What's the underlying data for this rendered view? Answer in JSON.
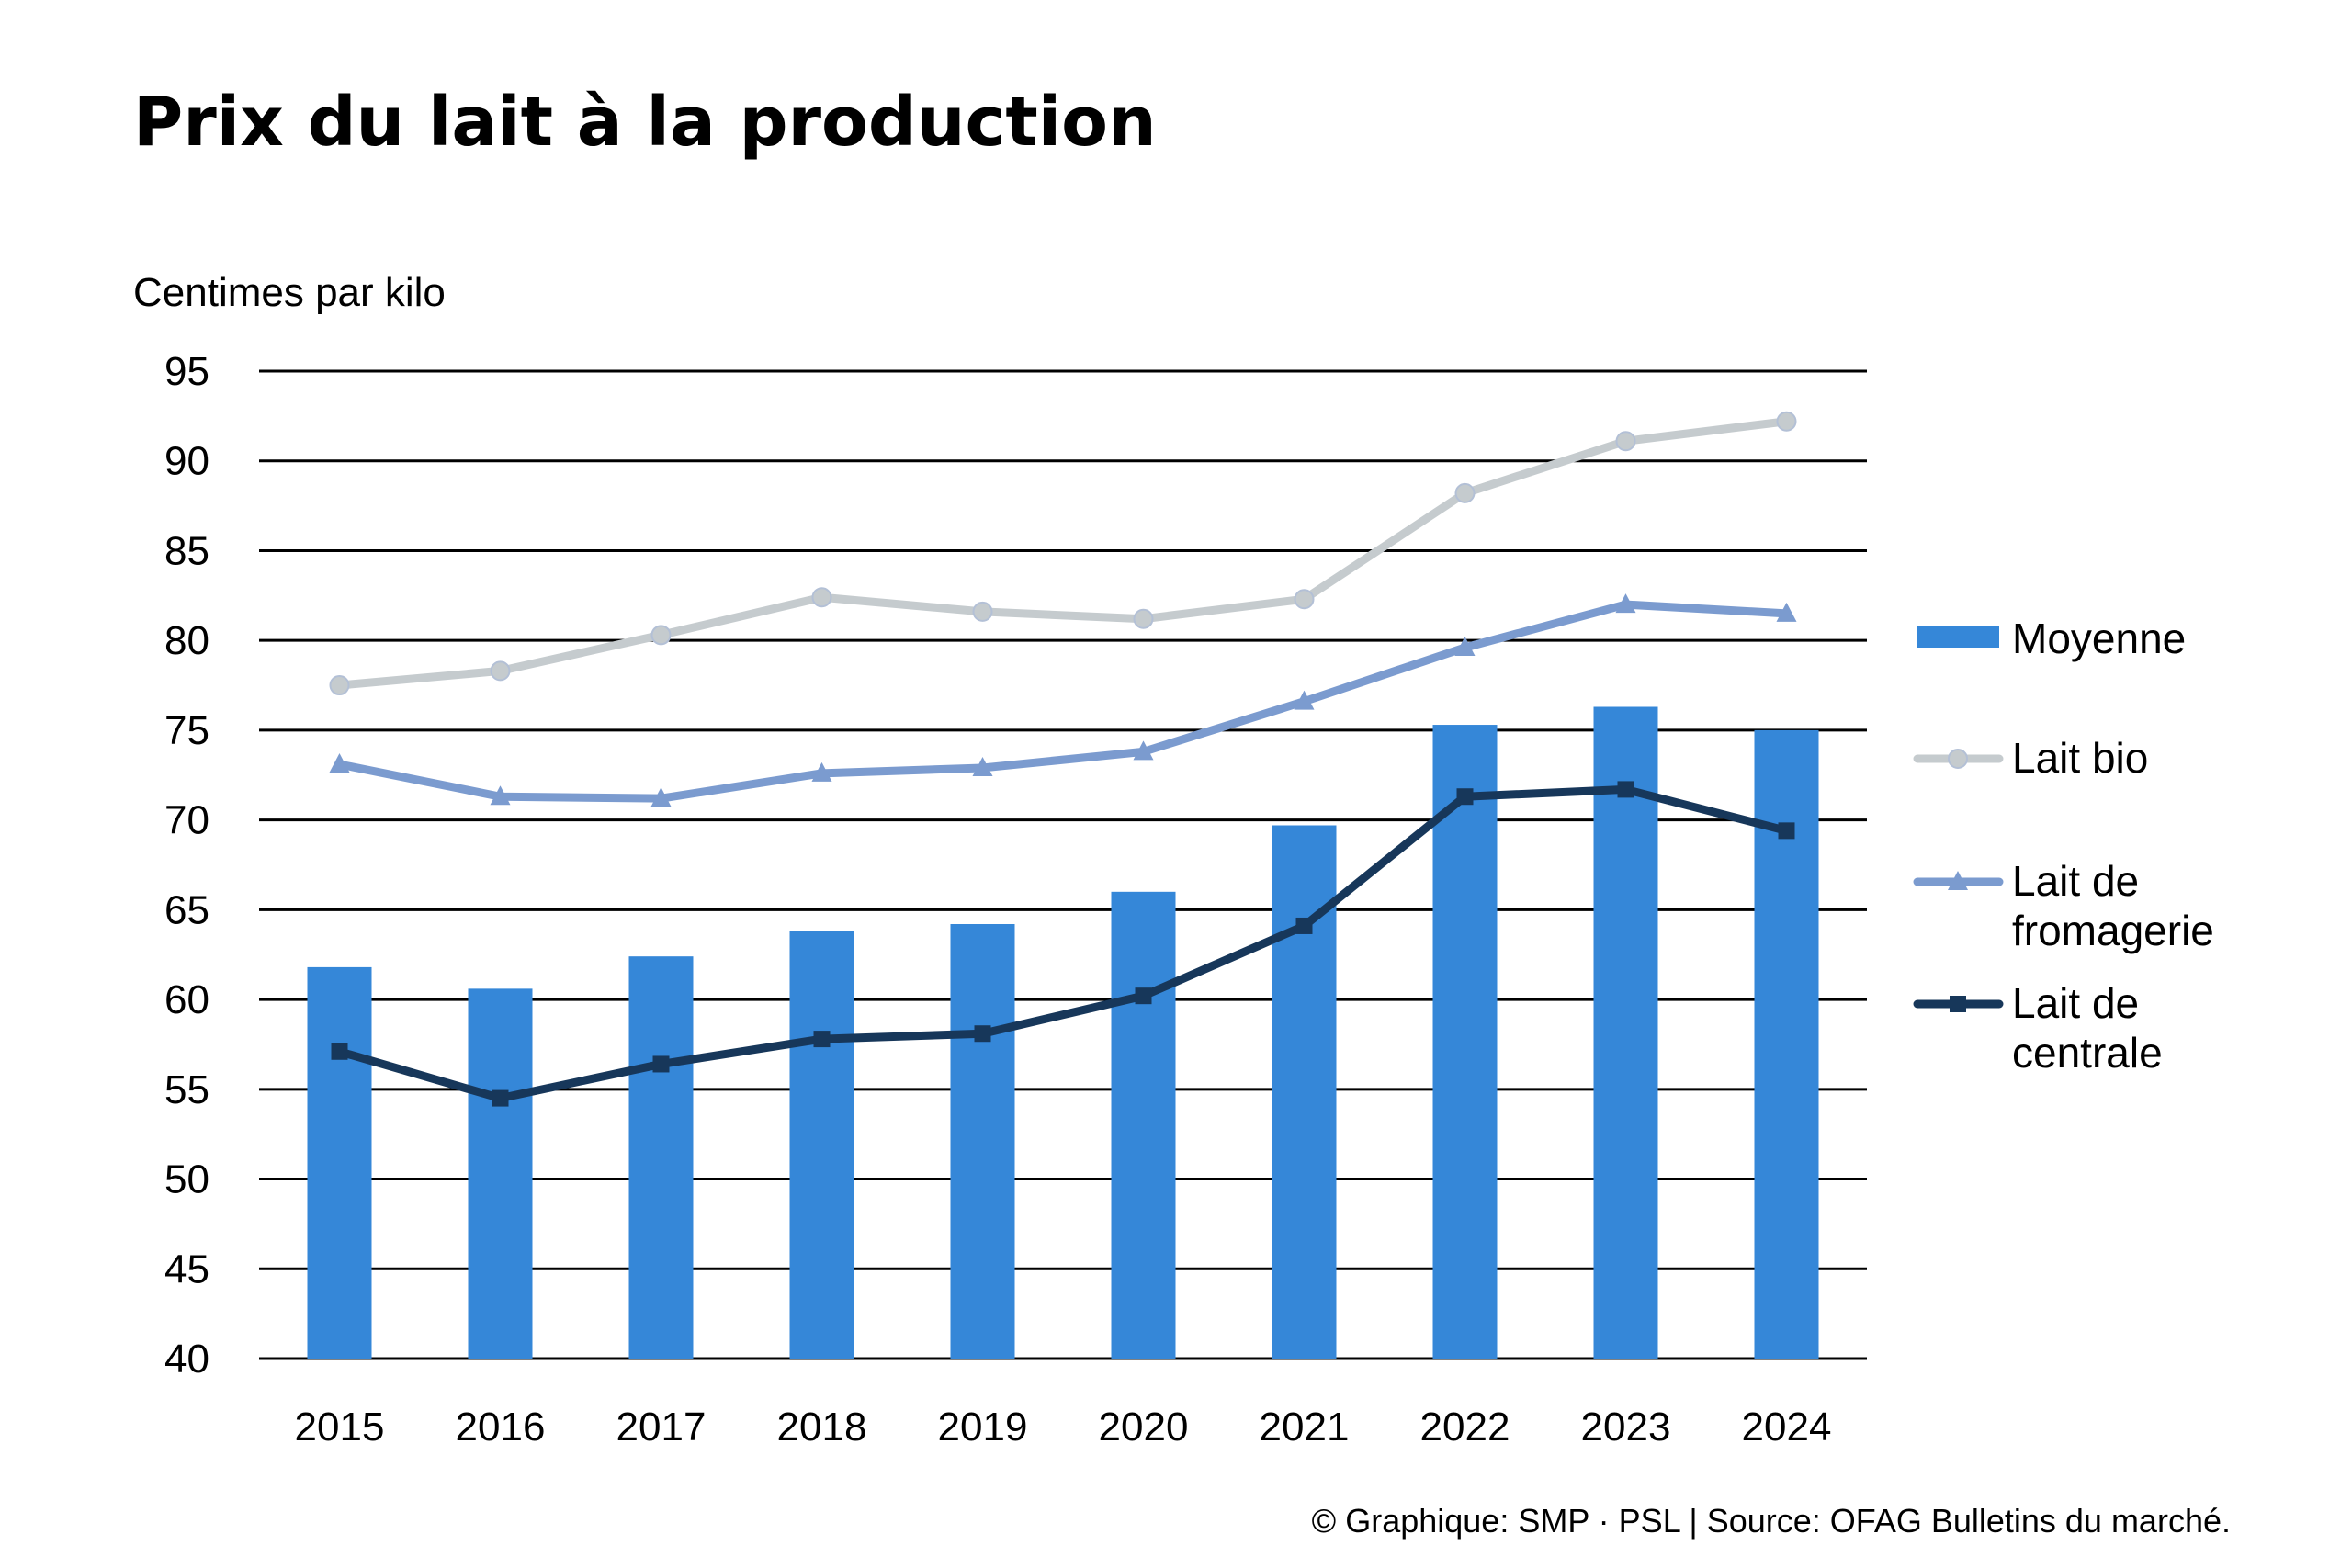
{
  "chart_data": {
    "type": "bar+line",
    "title": "Prix du lait à la production",
    "ylabel": "Centimes par kilo",
    "xlabel": "",
    "ylim": [
      40,
      95
    ],
    "yticks": [
      40,
      45,
      50,
      55,
      60,
      65,
      70,
      75,
      80,
      85,
      90,
      95
    ],
    "grid": true,
    "legend_placement": "right",
    "categories": [
      "2015",
      "2016",
      "2017",
      "2018",
      "2019",
      "2020",
      "2021",
      "2022",
      "2023",
      "2024"
    ],
    "series": [
      {
        "name": "Moyenne",
        "kind": "bar",
        "color": "#3587d8",
        "values": [
          61.8,
          60.6,
          62.4,
          63.8,
          64.2,
          66.0,
          69.7,
          75.3,
          76.3,
          75.0
        ]
      },
      {
        "name": "Lait bio",
        "kind": "line",
        "marker": "circle",
        "color": "#c5cbce",
        "values": [
          77.5,
          78.3,
          80.3,
          82.4,
          81.6,
          81.2,
          82.3,
          88.2,
          91.1,
          92.2
        ]
      },
      {
        "name": "Lait de fromagerie",
        "legend_lines": [
          "Lait de",
          "fromagerie"
        ],
        "kind": "line",
        "marker": "triangle",
        "color": "#7b9bcf",
        "values": [
          73.1,
          71.3,
          71.2,
          72.6,
          72.9,
          73.8,
          76.6,
          79.6,
          82.0,
          81.5
        ]
      },
      {
        "name": "Lait de centrale",
        "legend_lines": [
          "Lait de",
          "centrale"
        ],
        "kind": "line",
        "marker": "square",
        "color": "#17375a",
        "values": [
          57.1,
          54.5,
          56.4,
          57.8,
          58.1,
          60.2,
          64.1,
          71.3,
          71.7,
          69.4
        ]
      }
    ],
    "footer": "© Graphique: SMP · PSL | Source: OFAG Bulletins du marché."
  }
}
